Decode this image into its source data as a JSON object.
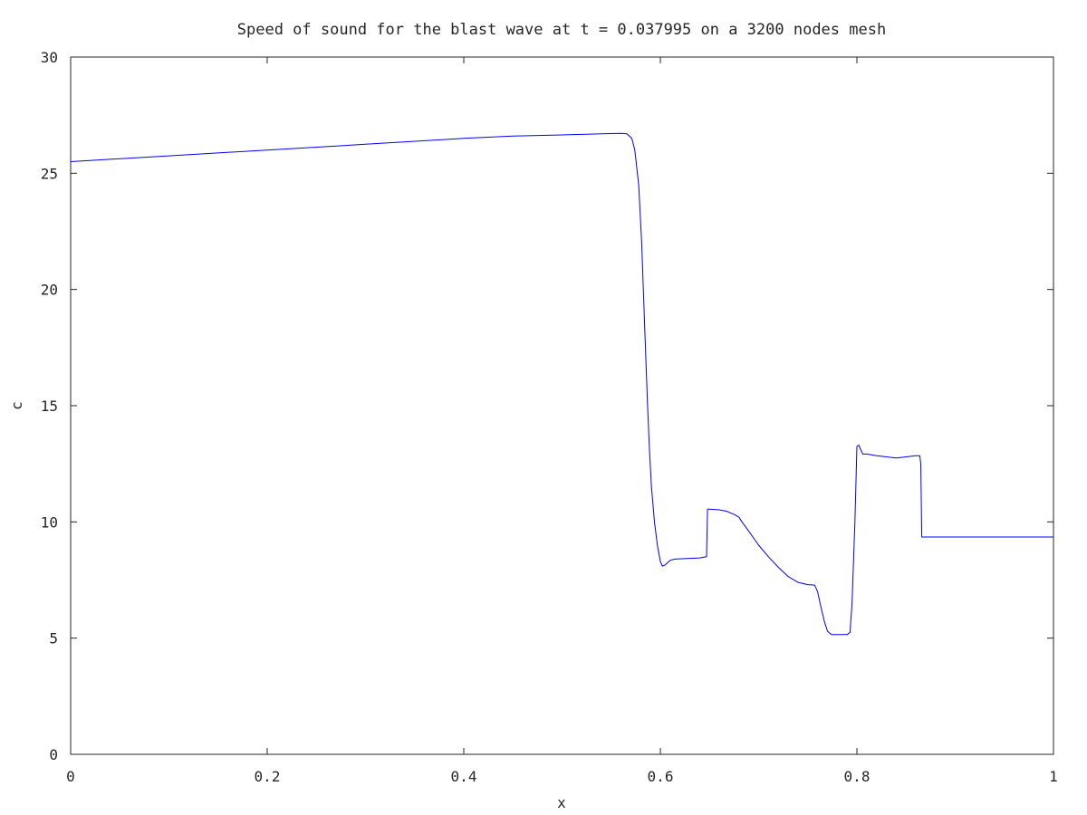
{
  "chart_data": {
    "type": "line",
    "title": "Speed of sound for the blast wave at t = 0.037995 on a 3200 nodes mesh",
    "xlabel": "x",
    "ylabel": "c",
    "xlim": [
      0,
      1
    ],
    "ylim": [
      0,
      30
    ],
    "x_ticks": [
      "0",
      "0.2",
      "0.4",
      "0.6",
      "0.8",
      "1"
    ],
    "y_ticks": [
      "0",
      "5",
      "10",
      "15",
      "20",
      "25",
      "30"
    ],
    "x_tick_values": [
      0,
      0.2,
      0.4,
      0.6,
      0.8,
      1
    ],
    "y_tick_values": [
      0,
      5,
      10,
      15,
      20,
      25,
      30
    ],
    "grid": false,
    "line_color": "#0000ff",
    "series": [
      {
        "x": [
          0,
          0.1,
          0.2,
          0.3,
          0.4,
          0.45,
          0.5,
          0.54,
          0.56,
          0.566,
          0.571,
          0.574,
          0.578,
          0.581,
          0.584,
          0.587,
          0.589,
          0.591,
          0.594,
          0.597,
          0.6,
          0.602,
          0.605,
          0.61,
          0.615,
          0.625,
          0.64,
          0.647,
          0.648,
          0.65,
          0.66,
          0.668,
          0.676,
          0.68,
          0.683,
          0.69,
          0.7,
          0.71,
          0.72,
          0.73,
          0.74,
          0.75,
          0.757,
          0.76,
          0.763,
          0.767,
          0.77,
          0.774,
          0.78,
          0.785,
          0.79,
          0.793,
          0.795,
          0.798,
          0.8,
          0.802,
          0.804,
          0.806,
          0.81,
          0.82,
          0.84,
          0.85,
          0.86,
          0.864,
          0.865,
          0.866,
          0.87,
          0.9,
          1.0
        ],
        "y": [
          25.5,
          25.75,
          26.0,
          26.25,
          26.5,
          26.6,
          26.65,
          26.7,
          26.72,
          26.7,
          26.5,
          26.0,
          24.5,
          22.0,
          18.5,
          15.0,
          13.0,
          11.5,
          10.0,
          9.0,
          8.3,
          8.1,
          8.15,
          8.35,
          8.4,
          8.42,
          8.45,
          8.5,
          10.55,
          10.55,
          10.52,
          10.45,
          10.3,
          10.2,
          10.0,
          9.6,
          9.0,
          8.5,
          8.05,
          7.65,
          7.4,
          7.3,
          7.28,
          7.0,
          6.4,
          5.7,
          5.3,
          5.15,
          5.15,
          5.15,
          5.15,
          5.25,
          6.5,
          10.0,
          13.25,
          13.3,
          13.1,
          12.92,
          12.92,
          12.85,
          12.75,
          12.8,
          12.85,
          12.85,
          12.5,
          9.35,
          9.35,
          9.35,
          9.35
        ]
      }
    ]
  }
}
